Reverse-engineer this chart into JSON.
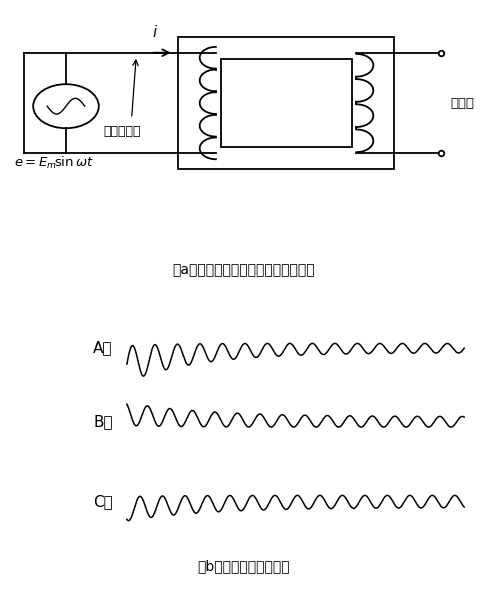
{
  "caption_a": "（a）　充電時の様子（単相で表示）",
  "caption_b": "（b）　各相電流波形例",
  "label_A": "A相",
  "label_B": "B相",
  "label_C": "C相",
  "label_open": "開放中",
  "label_charge": "変圧器充電",
  "bg_color": "#ffffff",
  "line_color": "#000000"
}
